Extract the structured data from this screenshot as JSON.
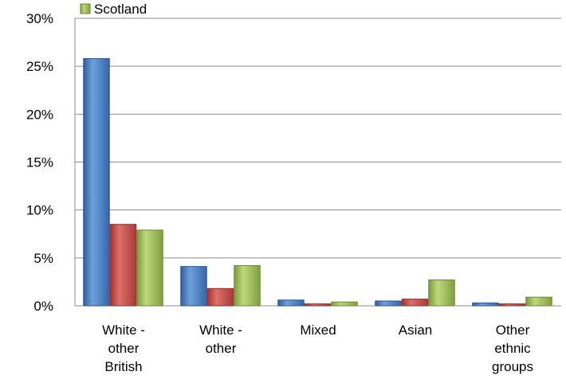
{
  "chart_data": {
    "type": "bar",
    "categories": [
      [
        "White -",
        "other",
        "British"
      ],
      [
        "White -",
        "other"
      ],
      [
        "Mixed"
      ],
      [
        "Asian"
      ],
      [
        "Other",
        "ethnic",
        "groups"
      ]
    ],
    "series": [
      {
        "color": "#4F81BD",
        "values": [
          25.8,
          4.1,
          0.6,
          0.5,
          0.3
        ]
      },
      {
        "color": "#C0504D",
        "values": [
          8.5,
          1.8,
          0.2,
          0.7,
          0.2
        ]
      },
      {
        "name": "Scotland",
        "color": "#9BBB59",
        "values": [
          7.9,
          4.2,
          0.4,
          2.7,
          0.9
        ]
      }
    ],
    "yticks": [
      "0%",
      "5%",
      "10%",
      "15%",
      "20%",
      "25%",
      "30%"
    ],
    "ylim": [
      0,
      30
    ],
    "grid": true,
    "legend_position": "top"
  }
}
